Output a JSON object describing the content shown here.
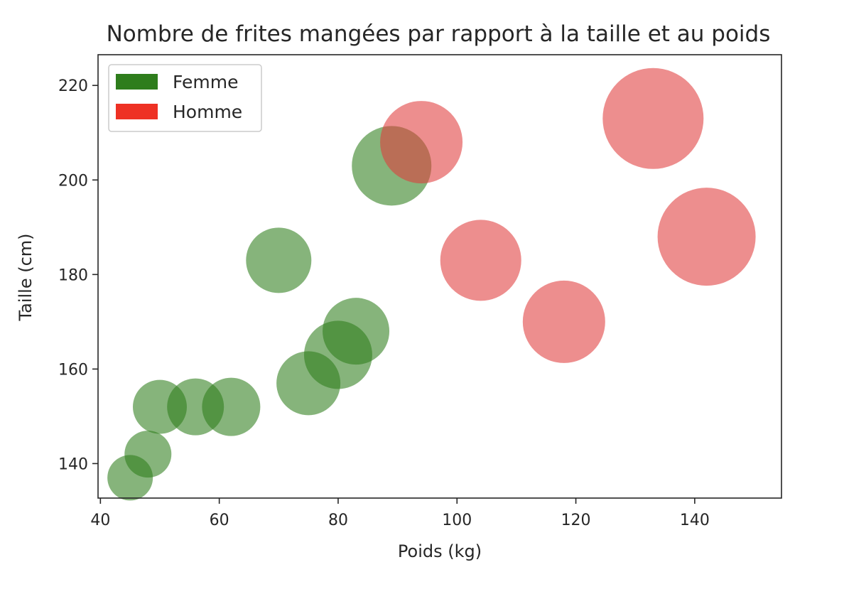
{
  "chart_data": {
    "type": "scatter",
    "title": "Nombre de frites mangées par rapport à la taille et au poids",
    "xlabel": "Poids (kg)",
    "ylabel": "Taille (cm)",
    "xlim": [
      39.6,
      154.6
    ],
    "ylim": [
      132.7,
      226.5
    ],
    "xticks": [
      40,
      60,
      80,
      100,
      120,
      140
    ],
    "yticks": [
      140,
      160,
      180,
      200,
      220
    ],
    "grid": false,
    "legend_position": "upper-left",
    "series": [
      {
        "name": "Femme",
        "color": "#2e7d1c",
        "legend_color": "#2e7d1c",
        "points": [
          {
            "x": 45,
            "y": 137,
            "size": 32
          },
          {
            "x": 48,
            "y": 142,
            "size": 33
          },
          {
            "x": 50,
            "y": 152,
            "size": 38
          },
          {
            "x": 56,
            "y": 152,
            "size": 40
          },
          {
            "x": 62,
            "y": 152,
            "size": 41
          },
          {
            "x": 70,
            "y": 183,
            "size": 46
          },
          {
            "x": 75,
            "y": 157,
            "size": 45
          },
          {
            "x": 80,
            "y": 163,
            "size": 48
          },
          {
            "x": 83,
            "y": 168,
            "size": 47
          },
          {
            "x": 89,
            "y": 203,
            "size": 56
          }
        ]
      },
      {
        "name": "Homme",
        "color": "#e03c3c",
        "legend_color": "#ee3124",
        "points": [
          {
            "x": 94,
            "y": 208,
            "size": 58
          },
          {
            "x": 104,
            "y": 183,
            "size": 57
          },
          {
            "x": 118,
            "y": 170,
            "size": 58
          },
          {
            "x": 133,
            "y": 213,
            "size": 71
          },
          {
            "x": 142,
            "y": 188,
            "size": 69
          }
        ]
      }
    ]
  }
}
